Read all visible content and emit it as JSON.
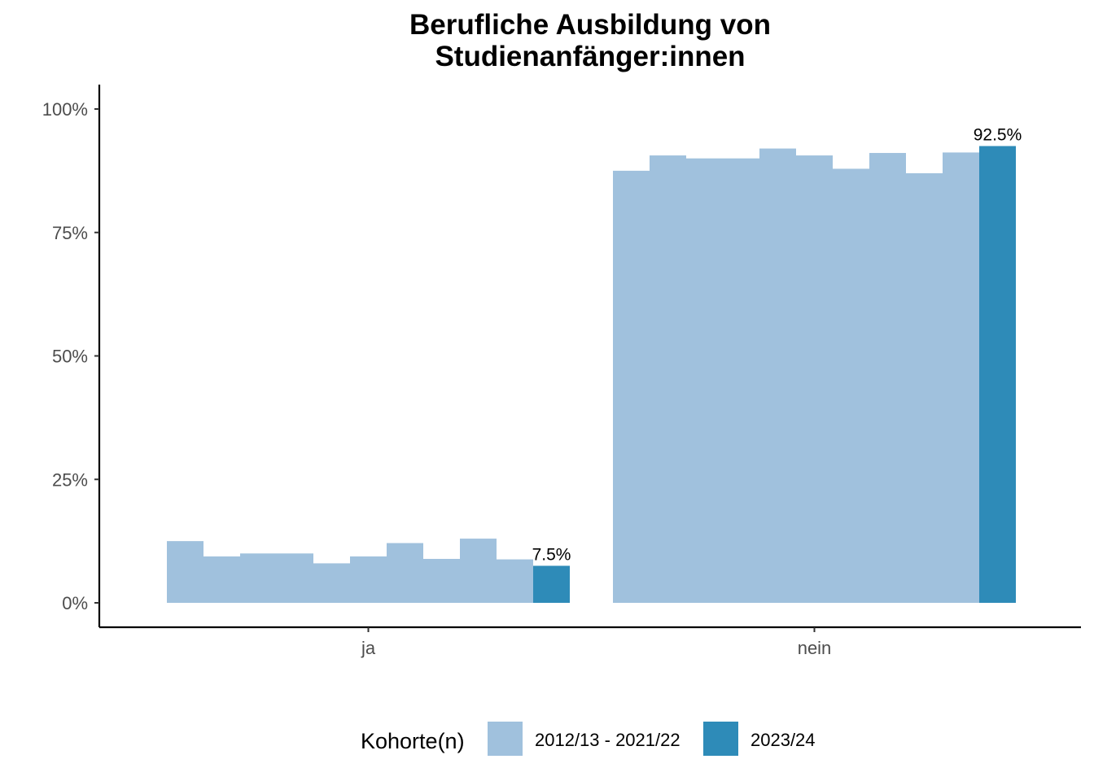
{
  "chart_data": {
    "type": "bar",
    "title_lines": [
      "Berufliche Ausbildung von",
      "Studienanfänger:innen"
    ],
    "xlabel": "",
    "ylabel": "",
    "categories": [
      "ja",
      "nein"
    ],
    "y_ticks": [
      "0%",
      "25%",
      "50%",
      "75%",
      "100%"
    ],
    "ylim": [
      0,
      1.05
    ],
    "grid": false,
    "legend": {
      "title": "Kohorte(n)",
      "position": "bottom",
      "entries": [
        {
          "label": "2012/13 - 2021/22",
          "color": "#a0c1dd"
        },
        {
          "label": "2023/24",
          "color": "#2e8bb8"
        }
      ]
    },
    "series": [
      {
        "group": "2012/13 - 2021/22",
        "values": [
          0.125,
          0.875
        ]
      },
      {
        "group": "2012/13 - 2021/22",
        "values": [
          0.094,
          0.906
        ]
      },
      {
        "group": "2012/13 - 2021/22",
        "values": [
          0.1,
          0.9
        ]
      },
      {
        "group": "2012/13 - 2021/22",
        "values": [
          0.1,
          0.9
        ]
      },
      {
        "group": "2012/13 - 2021/22",
        "values": [
          0.08,
          0.92
        ]
      },
      {
        "group": "2012/13 - 2021/22",
        "values": [
          0.094,
          0.906
        ]
      },
      {
        "group": "2012/13 - 2021/22",
        "values": [
          0.121,
          0.879
        ]
      },
      {
        "group": "2012/13 - 2021/22",
        "values": [
          0.089,
          0.911
        ]
      },
      {
        "group": "2012/13 - 2021/22",
        "values": [
          0.13,
          0.87
        ]
      },
      {
        "group": "2012/13 - 2021/22",
        "values": [
          0.088,
          0.912
        ]
      },
      {
        "group": "2023/24",
        "values": [
          0.075,
          0.925
        ]
      }
    ],
    "data_labels": [
      "7.5%",
      "92.5%"
    ]
  }
}
